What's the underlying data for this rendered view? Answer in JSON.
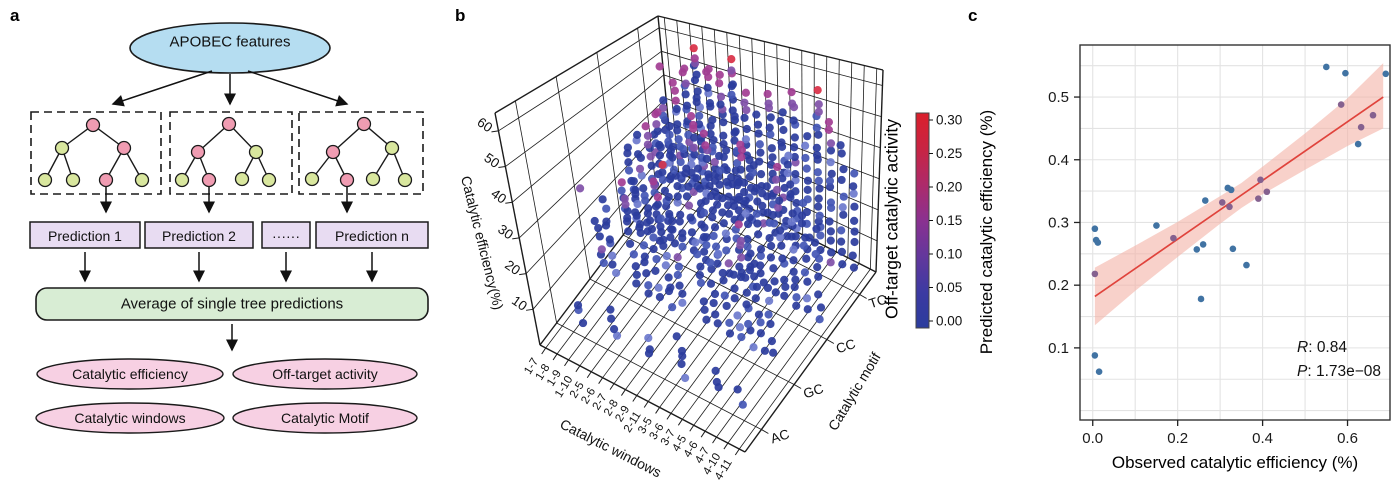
{
  "figure": {
    "background": "#ffffff",
    "panel_labels": {
      "a": "a",
      "b": "b",
      "c": "c"
    }
  },
  "panel_a": {
    "root_label": "APOBEC features",
    "predictions": [
      "Prediction 1",
      "Prediction 2",
      "······",
      "Prediction n"
    ],
    "average_label": "Average of single tree predictions",
    "outputs": [
      "Catalytic efficiency",
      "Off-target activity",
      "Catalytic windows",
      "Catalytic Motif"
    ],
    "colors": {
      "root_fill": "#b5ddf1",
      "tree_split_fill": "#f09cb2",
      "tree_leaf_fill": "#d9e79e",
      "prediction_fill": "#e8dcf2",
      "average_fill": "#d8edd4",
      "output_fill": "#f7d0e3"
    }
  },
  "chart_data": [
    {
      "panel": "b",
      "type": "scatter3d",
      "xlabel": "Catalytic windows",
      "x_ticks": [
        "1-7",
        "1-8",
        "1-9",
        "1-10",
        "2-5",
        "2-6",
        "2-7",
        "2-8",
        "2-9",
        "2-11",
        "3-5",
        "3-6",
        "3-7",
        "4-5",
        "4-6",
        "4-7",
        "4-10",
        "4-11"
      ],
      "ylabel": "Catalytic motif",
      "y_ticks": [
        "AC",
        "GC",
        "CC",
        "TC"
      ],
      "zlabel": "Catalytic efficiency(%)",
      "z_ticks": [
        10,
        20,
        30,
        40,
        50,
        60
      ],
      "zlim": [
        0,
        65
      ],
      "colorbar": {
        "label": "Off-target catalytic activity",
        "ticks": [
          "0.00",
          "0.05",
          "0.10",
          "0.15",
          "0.20",
          "0.25",
          "0.30"
        ],
        "min": 0.0,
        "max": 0.3,
        "gradient": [
          "#2b3c9d",
          "#3c3aa2",
          "#63379c",
          "#8a3190",
          "#ad2a6a",
          "#c82443",
          "#da1f2b"
        ]
      },
      "point_colors": {
        "deep": "#2b3c9d",
        "mid": "#4356b5",
        "light": "#6d79cd",
        "purple": "#8050a8",
        "magenta": "#a23d92",
        "red": "#d92f45"
      },
      "columns": {
        "AC": [
          null,
          null,
          [
            5,
            9,
            3,
            0
          ],
          null,
          null,
          [
            5,
            13,
            4,
            0
          ],
          null,
          null,
          [
            6,
            10,
            3,
            0
          ],
          null,
          null,
          [
            5,
            15,
            5,
            0
          ],
          null,
          null,
          [
            6,
            11,
            3,
            0
          ],
          null,
          [
            5,
            8,
            2,
            0
          ],
          null
        ],
        "GC": [
          null,
          [
            7,
            22,
            6,
            0
          ],
          [
            6,
            30,
            9,
            0
          ],
          null,
          [
            7,
            38,
            11,
            1
          ],
          [
            6,
            42,
            13,
            0
          ],
          [
            7,
            34,
            9,
            0
          ],
          [
            6,
            45,
            14,
            1
          ],
          [
            7,
            40,
            11,
            0
          ],
          null,
          [
            6,
            31,
            8,
            0
          ],
          [
            7,
            40,
            11,
            0
          ],
          [
            6,
            29,
            7,
            0
          ],
          [
            7,
            25,
            6,
            0
          ],
          [
            6,
            42,
            12,
            1
          ],
          [
            7,
            35,
            9,
            0
          ],
          [
            6,
            27,
            6,
            0
          ],
          null
        ],
        "CC": [
          [
            7,
            17,
            4,
            0
          ],
          [
            6,
            34,
            10,
            0
          ],
          [
            7,
            40,
            12,
            0
          ],
          [
            6,
            45,
            14,
            1
          ],
          [
            7,
            52,
            17,
            1
          ],
          [
            6,
            48,
            15,
            0
          ],
          [
            7,
            42,
            12,
            0
          ],
          [
            6,
            55,
            18,
            1
          ],
          [
            7,
            50,
            15,
            1
          ],
          [
            6,
            44,
            12,
            0
          ],
          [
            7,
            39,
            10,
            0
          ],
          [
            6,
            52,
            16,
            1
          ],
          [
            7,
            46,
            13,
            0
          ],
          [
            6,
            40,
            10,
            0
          ],
          [
            7,
            48,
            14,
            1
          ],
          [
            6,
            54,
            17,
            0
          ],
          [
            7,
            41,
            10,
            0
          ],
          [
            6,
            34,
            8,
            0
          ]
        ],
        "TC": [
          [
            9,
            24,
            5,
            0
          ],
          [
            7,
            40,
            11,
            0
          ],
          [
            6,
            48,
            14,
            1
          ],
          [
            7,
            55,
            18,
            1
          ],
          [
            6,
            63,
            24,
            2
          ],
          [
            7,
            58,
            20,
            1
          ],
          [
            6,
            55,
            18,
            1
          ],
          [
            7,
            62,
            24,
            2
          ],
          [
            6,
            52,
            16,
            1
          ],
          [
            7,
            47,
            12,
            0
          ],
          [
            6,
            55,
            17,
            1
          ],
          [
            7,
            50,
            14,
            0
          ],
          [
            6,
            58,
            18,
            1
          ],
          [
            7,
            45,
            11,
            0
          ],
          [
            6,
            60,
            20,
            2
          ],
          [
            7,
            52,
            15,
            1
          ],
          [
            6,
            46,
            11,
            0
          ],
          [
            7,
            38,
            9,
            0
          ]
        ]
      },
      "extra_points": [
        {
          "motif": "CC",
          "window": 4,
          "z": 33,
          "color": "#d2344b"
        },
        {
          "motif": "GC",
          "window": 0,
          "z": 30,
          "color": "#8050a8"
        },
        {
          "motif": "TC",
          "window": 1,
          "z": 52,
          "color": "#a23d92"
        }
      ]
    },
    {
      "panel": "c",
      "type": "scatter",
      "xlabel": "Observed catalytic efficiency (%)",
      "ylabel": "Predicted catalytic efficiency (%)",
      "xlim": [
        -0.03,
        0.7
      ],
      "ylim": [
        -0.015,
        0.583
      ],
      "x_ticks": [
        "0.0",
        "0.2",
        "0.4",
        "0.6"
      ],
      "y_ticks": [
        "0.1",
        "0.2",
        "0.3",
        "0.4",
        "0.5"
      ],
      "grid": true,
      "point_colors": {
        "blue": "#4173a3",
        "overlap": "#85618f"
      },
      "points": [
        [
          0.005,
          0.29,
          0
        ],
        [
          0.008,
          0.272,
          0
        ],
        [
          0.012,
          0.268,
          0
        ],
        [
          0.005,
          0.218,
          1
        ],
        [
          0.005,
          0.088,
          0
        ],
        [
          0.015,
          0.062,
          0
        ],
        [
          0.15,
          0.295,
          0
        ],
        [
          0.19,
          0.275,
          1
        ],
        [
          0.245,
          0.257,
          0
        ],
        [
          0.26,
          0.265,
          0
        ],
        [
          0.255,
          0.178,
          0
        ],
        [
          0.265,
          0.335,
          0
        ],
        [
          0.305,
          0.332,
          1
        ],
        [
          0.318,
          0.355,
          0
        ],
        [
          0.326,
          0.352,
          0
        ],
        [
          0.322,
          0.325,
          1
        ],
        [
          0.33,
          0.258,
          0
        ],
        [
          0.362,
          0.232,
          0
        ],
        [
          0.39,
          0.338,
          1
        ],
        [
          0.395,
          0.368,
          1
        ],
        [
          0.41,
          0.349,
          1
        ],
        [
          0.55,
          0.548,
          0
        ],
        [
          0.595,
          0.538,
          0
        ],
        [
          0.585,
          0.488,
          1
        ],
        [
          0.625,
          0.425,
          0
        ],
        [
          0.632,
          0.452,
          1
        ],
        [
          0.66,
          0.471,
          1
        ],
        [
          0.69,
          0.537,
          0
        ]
      ],
      "regression": {
        "x": [
          0.005,
          0.684
        ],
        "y": [
          0.182,
          0.5
        ],
        "color": "#e0433c"
      },
      "band": {
        "x": [
          0.005,
          0.1,
          0.2,
          0.3,
          0.35,
          0.4,
          0.5,
          0.6,
          0.684
        ],
        "hi": [
          0.228,
          0.263,
          0.301,
          0.342,
          0.363,
          0.389,
          0.442,
          0.498,
          0.554
        ],
        "lo": [
          0.136,
          0.191,
          0.245,
          0.298,
          0.323,
          0.345,
          0.384,
          0.422,
          0.45
        ],
        "fill": "#f3b3a6",
        "opacity": 0.6
      },
      "stats": {
        "r_label": "R",
        "r_text": ": 0.84",
        "p_label": "P",
        "p_text": ": 1.73e−08"
      }
    }
  ]
}
